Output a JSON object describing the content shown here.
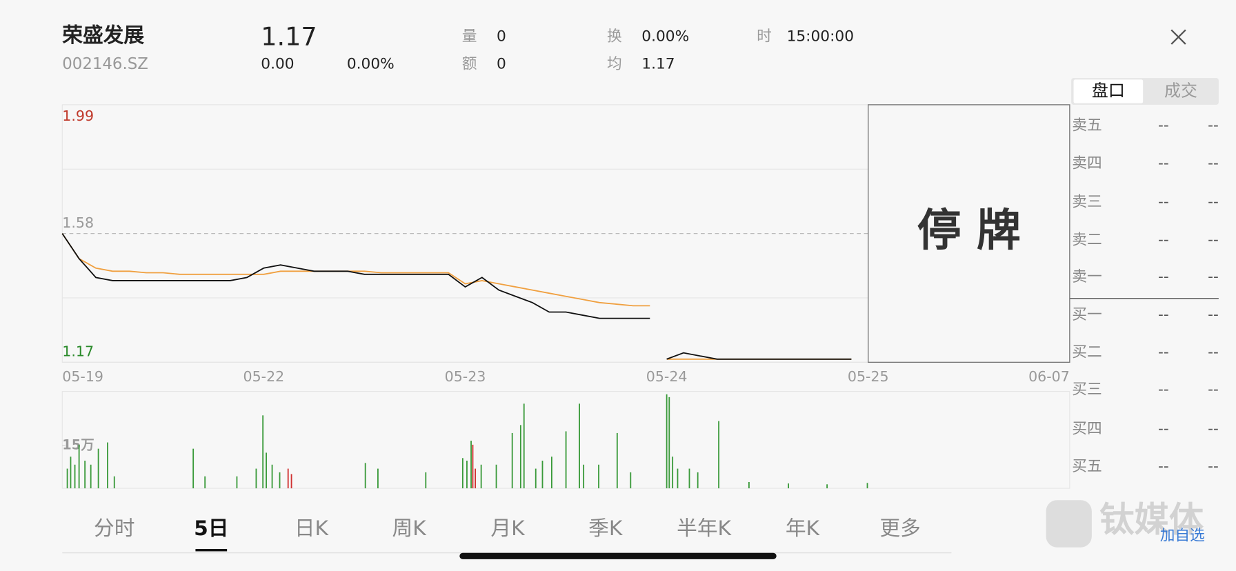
{
  "header": {
    "name": "荣盛发展",
    "code": "002146.SZ",
    "price": "1.17",
    "change": "0.00",
    "change_pct": "0.00%",
    "stats": [
      {
        "label": "量",
        "value": "0"
      },
      {
        "label": "额",
        "value": "0"
      },
      {
        "label": "换",
        "value": "0.00%"
      },
      {
        "label": "均",
        "value": "1.17"
      },
      {
        "label": "时",
        "value": "15:00:00"
      }
    ]
  },
  "chart_data": [
    {
      "type": "line",
      "xlim": [
        0,
        1200
      ],
      "xticks": [
        {
          "value": 0,
          "label": "05-19"
        },
        {
          "value": 240,
          "label": "05-22"
        },
        {
          "value": 480,
          "label": "05-23"
        },
        {
          "value": 720,
          "label": "05-24"
        },
        {
          "value": 960,
          "label": "05-25"
        },
        {
          "value": 1200,
          "label": "06-07"
        }
      ],
      "ylim": [
        1.17,
        1.99
      ],
      "yticks": [
        1.17,
        1.58,
        1.99
      ],
      "ytick_colors": [
        "#2a8a2a",
        "#999999",
        "#c0392b"
      ],
      "x": [
        0,
        20,
        40,
        60,
        80,
        100,
        120,
        140,
        160,
        180,
        200,
        220,
        240,
        260,
        280,
        300,
        320,
        340,
        360,
        380,
        400,
        420,
        440,
        460,
        480,
        500,
        520,
        540,
        560,
        580,
        600,
        620,
        640,
        660,
        680,
        700,
        710,
        720,
        740,
        760,
        780,
        800,
        820,
        840,
        860,
        880,
        900,
        920,
        940
      ],
      "series": [
        {
          "color": "#111111",
          "values": [
            1.58,
            1.5,
            1.44,
            1.43,
            1.43,
            1.43,
            1.43,
            1.43,
            1.43,
            1.43,
            1.43,
            1.44,
            1.47,
            1.48,
            1.47,
            1.46,
            1.46,
            1.46,
            1.45,
            1.45,
            1.45,
            1.45,
            1.45,
            1.45,
            1.41,
            1.44,
            1.4,
            1.38,
            1.36,
            1.33,
            1.33,
            1.32,
            1.31,
            1.31,
            1.31,
            1.31,
            null,
            1.18,
            1.2,
            1.19,
            1.18,
            1.18,
            1.18,
            1.18,
            1.18,
            1.18,
            1.18,
            1.18,
            1.18
          ]
        },
        {
          "color": "#f0a040",
          "values": [
            1.58,
            1.5,
            1.47,
            1.46,
            1.46,
            1.455,
            1.455,
            1.45,
            1.45,
            1.45,
            1.45,
            1.45,
            1.45,
            1.46,
            1.46,
            1.46,
            1.46,
            1.46,
            1.46,
            1.455,
            1.455,
            1.455,
            1.455,
            1.455,
            1.42,
            1.43,
            1.42,
            1.41,
            1.4,
            1.39,
            1.38,
            1.37,
            1.36,
            1.355,
            1.35,
            1.35,
            null,
            1.18,
            1.18,
            1.18,
            1.18,
            1.18,
            1.18,
            1.18,
            1.18,
            1.18,
            1.18,
            1.18,
            1.18
          ]
        }
      ],
      "suspended_label": "停 牌"
    },
    {
      "type": "bar",
      "xlim": [
        0,
        1200
      ],
      "ylim": [
        0,
        340000
      ],
      "yticks": [
        {
          "value": 150000,
          "label": "15万"
        }
      ],
      "series": [
        {
          "color": "#3a9a3a",
          "x": [
            6,
            10,
            15,
            20,
            27,
            34,
            43,
            54,
            62,
            156,
            170,
            208,
            231,
            239,
            243,
            250,
            259,
            361,
            376,
            433,
            477,
            482,
            487,
            499,
            517,
            536,
            546,
            550,
            564,
            572,
            583,
            600,
            616,
            621,
            639,
            661,
            677,
            720,
            723,
            727,
            733,
            747,
            757,
            782,
            818,
            865,
            911,
            959
          ],
          "values": [
            69000,
            111000,
            83000,
            153000,
            97000,
            83000,
            139000,
            161000,
            42000,
            139000,
            42000,
            42000,
            69000,
            256000,
            125000,
            83000,
            56000,
            89000,
            69000,
            56000,
            106000,
            97000,
            167000,
            83000,
            83000,
            194000,
            222000,
            297000,
            69000,
            97000,
            111000,
            200000,
            297000,
            83000,
            83000,
            194000,
            56000,
            330000,
            320000,
            111000,
            69000,
            69000,
            56000,
            236000,
            22000,
            17000,
            14000,
            19000
          ]
        },
        {
          "color": "#d03030",
          "x": [
            269,
            273,
            489,
            492
          ],
          "values": [
            69000,
            50000,
            153000,
            69000
          ]
        }
      ]
    }
  ],
  "order_book": {
    "tabs": [
      "盘口",
      "成交"
    ],
    "selected_tab": 0,
    "rows": [
      {
        "label": "卖五",
        "price": "--",
        "volume": "--"
      },
      {
        "label": "卖四",
        "price": "--",
        "volume": "--"
      },
      {
        "label": "卖三",
        "price": "--",
        "volume": "--"
      },
      {
        "label": "卖二",
        "price": "--",
        "volume": "--"
      },
      {
        "label": "卖一",
        "price": "--",
        "volume": "--"
      },
      {
        "label": "买一",
        "price": "--",
        "volume": "--"
      },
      {
        "label": "买二",
        "price": "--",
        "volume": "--"
      },
      {
        "label": "买三",
        "price": "--",
        "volume": "--"
      },
      {
        "label": "买四",
        "price": "--",
        "volume": "--"
      },
      {
        "label": "买五",
        "price": "--",
        "volume": "--"
      }
    ]
  },
  "period_tabs": [
    "分时",
    "5日",
    "日K",
    "周K",
    "月K",
    "季K",
    "半年K",
    "年K",
    "更多"
  ],
  "selected_period": 1,
  "watermark": "钛媒体",
  "add_watchlist": "加自选"
}
